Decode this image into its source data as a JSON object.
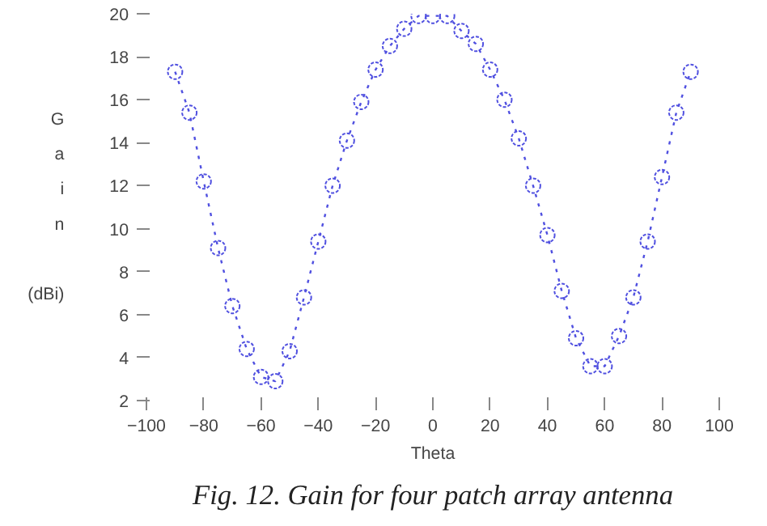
{
  "chart_data": {
    "type": "line",
    "xlabel": "Theta",
    "ylabel": "G\na\ni\nn\n\n(dBi)",
    "annotations": [
      "Fig. 12. Gain for four patch array antenna"
    ],
    "x": [
      -90,
      -85,
      -80,
      -75,
      -70,
      -65,
      -60,
      -55,
      -50,
      -45,
      -40,
      -35,
      -30,
      -25,
      -20,
      -15,
      -10,
      -5,
      0,
      5,
      10,
      15,
      20,
      25,
      30,
      35,
      40,
      45,
      50,
      55,
      60,
      65,
      70,
      75,
      80,
      85,
      90
    ],
    "series": [
      {
        "color": "#5050e0",
        "values": [
          17.3,
          15.4,
          12.2,
          9.1,
          6.4,
          4.4,
          3.1,
          2.9,
          4.3,
          6.8,
          9.4,
          12.0,
          14.1,
          15.9,
          17.4,
          18.5,
          19.3,
          19.9,
          19.9,
          19.9,
          19.2,
          18.6,
          17.4,
          16.0,
          14.2,
          12.0,
          9.7,
          7.1,
          4.9,
          3.6,
          3.6,
          5.0,
          6.8,
          9.4,
          12.4,
          15.4,
          17.3
        ]
      }
    ],
    "xlim": [
      -100,
      100
    ],
    "ylim": [
      2,
      20
    ],
    "xticks": [
      -100,
      -80,
      -60,
      -40,
      -20,
      0,
      20,
      40,
      60,
      80,
      100
    ],
    "yticks": [
      2,
      4,
      6,
      8,
      10,
      12,
      14,
      16,
      18,
      20
    ],
    "grid": false,
    "marker": "circle",
    "line_style": "dotted"
  }
}
